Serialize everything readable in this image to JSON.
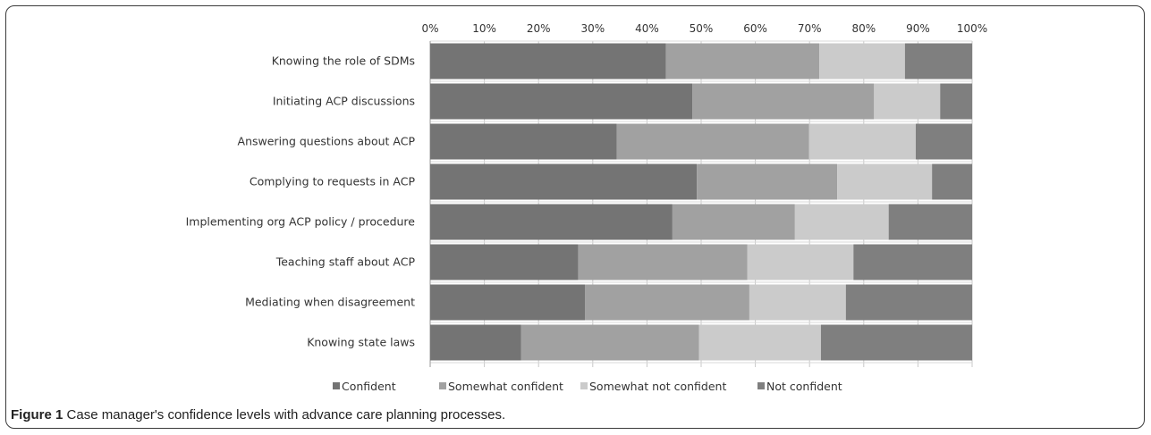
{
  "chart_data": {
    "type": "bar",
    "orientation": "horizontal",
    "stacked": true,
    "normalized_percent": true,
    "title": "",
    "xlabel": "",
    "ylabel": "",
    "xlim": [
      0,
      100
    ],
    "x_ticks": [
      "0%",
      "10%",
      "20%",
      "30%",
      "40%",
      "50%",
      "60%",
      "70%",
      "80%",
      "90%",
      "100%"
    ],
    "x_tick_values": [
      0,
      10,
      20,
      30,
      40,
      50,
      60,
      70,
      80,
      90,
      100
    ],
    "x_axis_position": "top",
    "grid": true,
    "legend_position": "bottom",
    "categories": [
      "Knowing the role of SDMs",
      "Initiating ACP discussions",
      "Answering questions about ACP",
      "Complying to requests in ACP",
      "Implementing org ACP policy / procedure",
      "Teaching staff about ACP",
      "Mediating when disagreement",
      "Knowing state laws"
    ],
    "series": [
      {
        "name": "Confident",
        "color": "#747474",
        "values": [
          43.5,
          48.4,
          34.4,
          49.2,
          44.7,
          27.3,
          28.6,
          16.8
        ]
      },
      {
        "name": "Somewhat confident",
        "color": "#a1a1a1",
        "values": [
          28.3,
          33.5,
          35.5,
          25.9,
          22.6,
          31.2,
          30.3,
          32.8
        ]
      },
      {
        "name": "Somewhat not confident",
        "color": "#cbcbcb",
        "values": [
          15.8,
          12.2,
          19.7,
          17.5,
          17.3,
          19.6,
          17.8,
          22.5
        ]
      },
      {
        "name": "Not confident",
        "color": "#7f7f7f",
        "values": [
          12.4,
          5.9,
          10.4,
          7.4,
          15.4,
          21.9,
          23.3,
          27.9
        ]
      }
    ]
  },
  "caption": {
    "label": "Figure 1",
    "text": " Case manager's confidence levels with advance care planning processes."
  }
}
